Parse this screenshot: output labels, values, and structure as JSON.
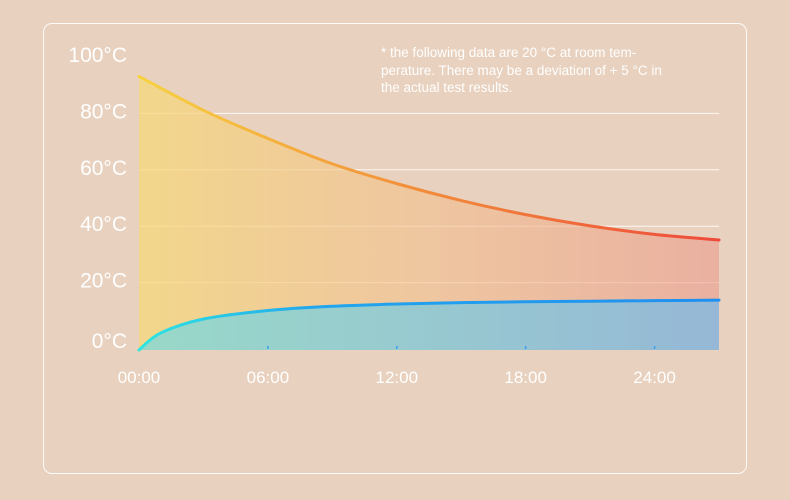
{
  "chart_data": {
    "type": "area",
    "title": "",
    "xlabel": "",
    "ylabel": "",
    "x_ticks": [
      "00:00",
      "06:00",
      "12:00",
      "18:00",
      "24:00"
    ],
    "y_ticks": [
      "0°C",
      "20°C",
      "40°C",
      "60°C",
      "80°C",
      "100°C"
    ],
    "xlim": [
      0,
      27
    ],
    "ylim": [
      0,
      100
    ],
    "grid": true,
    "annotation": "* the following data are 20 °C at room tem-\nperature. There may be a deviation of + 5 °C in\nthe actual test results.",
    "series": [
      {
        "color_start": "#f7d240",
        "color_end": "#ee4a3a",
        "x": [
          0,
          3,
          6,
          9,
          12,
          15,
          18,
          21,
          24,
          27
        ],
        "values": [
          97,
          85,
          75,
          66,
          59,
          53,
          48,
          44,
          41,
          39
        ]
      },
      {
        "color_start": "#2ee6e0",
        "color_end": "#1f8ff0",
        "x": [
          0,
          1,
          3,
          6,
          9,
          12,
          15,
          18,
          21,
          24,
          27
        ],
        "values": [
          0,
          6,
          11,
          14,
          15.5,
          16.3,
          16.8,
          17.1,
          17.3,
          17.5,
          17.7
        ]
      }
    ]
  },
  "colors": {
    "background": "#e8d1be",
    "grid": "#ffffff",
    "text": "#ffffff"
  }
}
